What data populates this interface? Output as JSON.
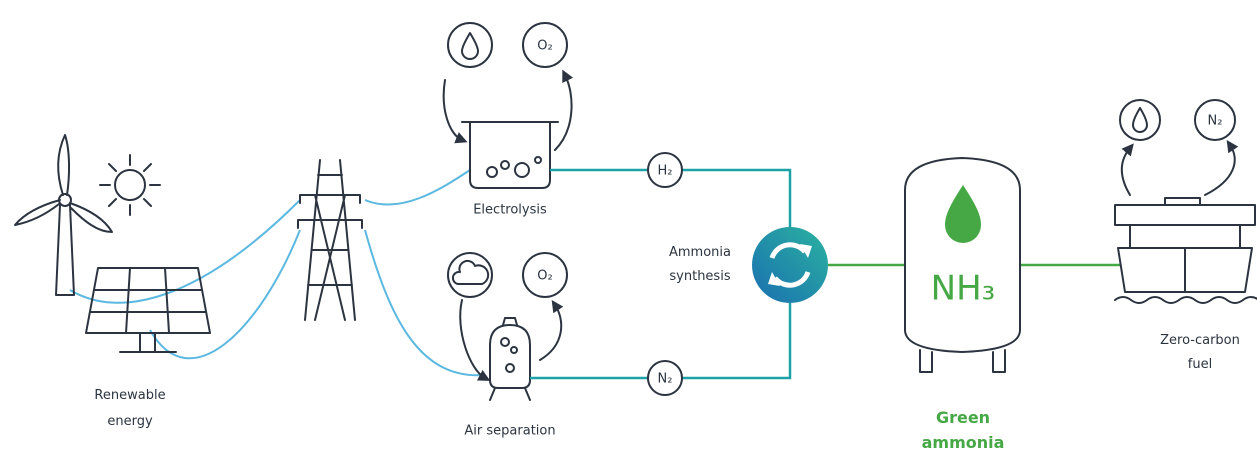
{
  "nodes": [
    {
      "id": "renewable",
      "label": [
        "Renewable",
        "energy"
      ]
    },
    {
      "id": "electrolysis",
      "label": [
        "Electrolysis"
      ],
      "inputs": [],
      "outputs": [
        "O₂"
      ]
    },
    {
      "id": "air-separation",
      "label": [
        "Air separation"
      ],
      "outputs": [
        "O₂"
      ]
    },
    {
      "id": "synthesis",
      "label": [
        "Ammonia",
        "synthesis"
      ]
    },
    {
      "id": "green-ammonia",
      "label": [
        "Green",
        "ammonia"
      ],
      "formula": "NH₃"
    },
    {
      "id": "fuel",
      "label": [
        "Zero-carbon",
        "fuel"
      ],
      "outputs": [
        "N₂"
      ]
    }
  ],
  "edges": [
    {
      "label": "H₂"
    },
    {
      "label": "N₂"
    }
  ]
}
